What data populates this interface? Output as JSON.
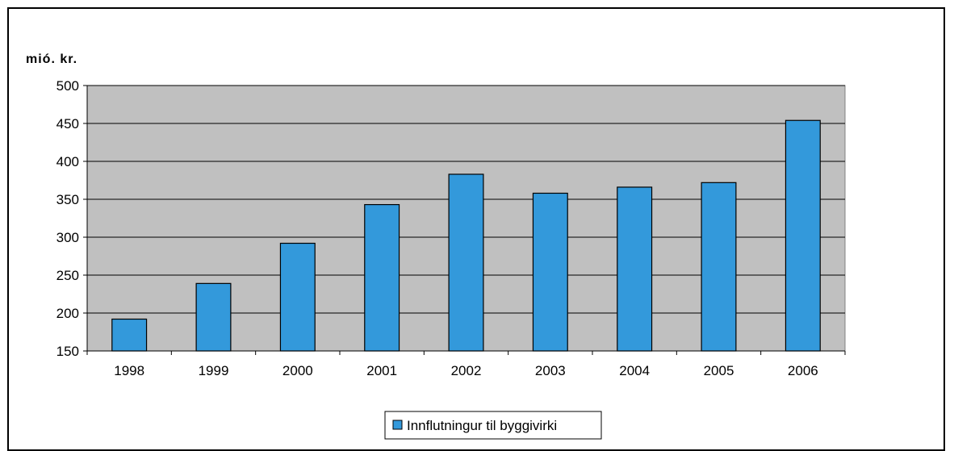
{
  "chart_data": {
    "type": "bar",
    "ylabel": "mió. kr.",
    "xlabel": "",
    "title": "",
    "ylim": [
      150,
      500
    ],
    "yticks": [
      150,
      200,
      250,
      300,
      350,
      400,
      450,
      500
    ],
    "categories": [
      "1998",
      "1999",
      "2000",
      "2001",
      "2002",
      "2003",
      "2004",
      "2005",
      "2006"
    ],
    "series": [
      {
        "name": "Innflutningur til byggivirki",
        "color": "#3399db",
        "values": [
          192,
          239,
          292,
          343,
          383,
          358,
          366,
          372,
          454
        ]
      }
    ],
    "plot_background": "#c0c0c0",
    "grid": true,
    "legend_placement": "bottom-center"
  }
}
